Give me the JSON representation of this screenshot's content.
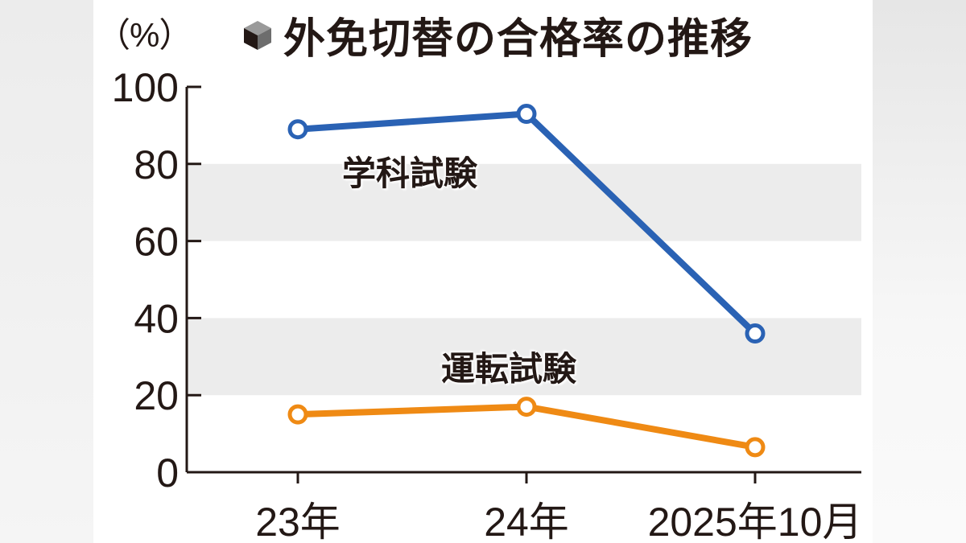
{
  "header": {
    "unit": "（%）",
    "title": "外免切替の合格率の推移",
    "title_icon": "cube-icon"
  },
  "colors": {
    "academic": "#2a62b4",
    "driving": "#ef8a14",
    "band": "#ececec",
    "axis": "#231815"
  },
  "legend": {
    "academic": "学科試験",
    "driving": "運転試験"
  },
  "chart_data": {
    "type": "line",
    "title": "外免切替の合格率の推移",
    "xlabel": "",
    "ylabel": "（%）",
    "categories": [
      "23年",
      "24年",
      "2025年10月"
    ],
    "ylim": [
      0,
      100
    ],
    "yticks": [
      0,
      20,
      40,
      60,
      80,
      100
    ],
    "grid": "alternating horizontal bands (20-40, 60-80)",
    "legend_position": "inline labels near lines",
    "series": [
      {
        "name": "学科試験",
        "color": "#2a62b4",
        "values": [
          89,
          93,
          36
        ]
      },
      {
        "name": "運転試験",
        "color": "#ef8a14",
        "values": [
          15,
          17,
          6.5
        ]
      }
    ]
  }
}
